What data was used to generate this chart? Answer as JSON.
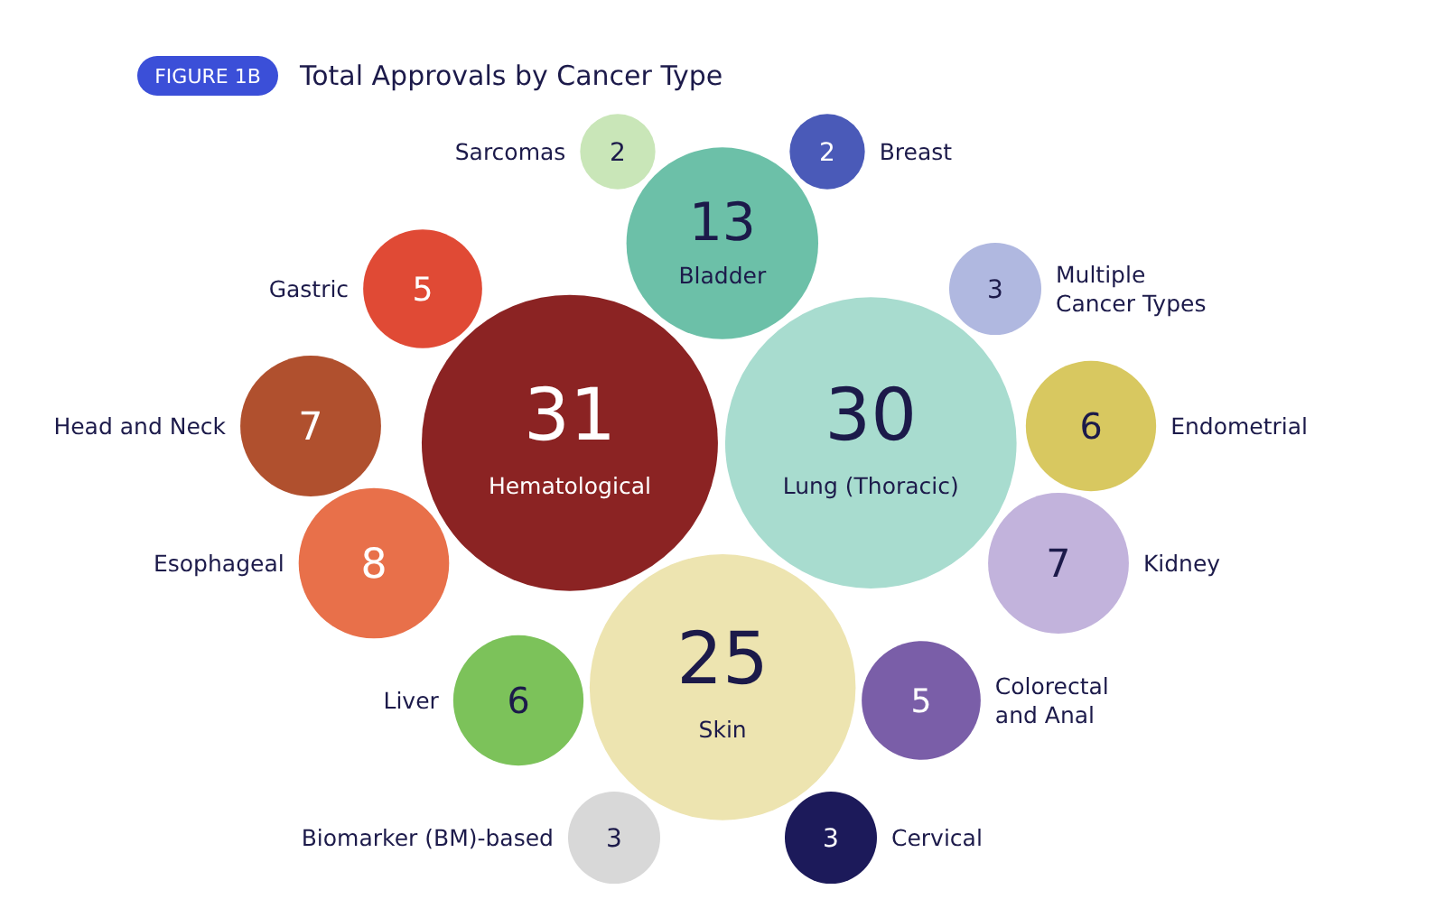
{
  "chart_data": {
    "type": "other",
    "subtitle": "FIGURE 1B",
    "title": "Total Approvals by Cancer Type",
    "categories": [
      "Hematological",
      "Lung (Thoracic)",
      "Skin",
      "Bladder",
      "Esophageal",
      "Kidney",
      "Head and Neck",
      "Endometrial",
      "Liver",
      "Colorectal and Anal",
      "Gastric",
      "Multiple Cancer Types",
      "Biomarker (BM)-based",
      "Cervical",
      "Sarcomas",
      "Breast"
    ],
    "values": [
      31,
      30,
      25,
      13,
      8,
      7,
      7,
      6,
      6,
      5,
      5,
      3,
      3,
      3,
      2,
      2
    ],
    "colors": [
      "#8b2323",
      "#a8dccf",
      "#ede4b0",
      "#6cc0a8",
      "#e8704a",
      "#c2b3dc",
      "#b0502e",
      "#d8c860",
      "#7cc25a",
      "#7a5ea8",
      "#e04a35",
      "#b0b8e0",
      "#d8d8d8",
      "#1c1a5a",
      "#c9e6b8",
      "#4a5ab8"
    ],
    "data_labels": true
  }
}
